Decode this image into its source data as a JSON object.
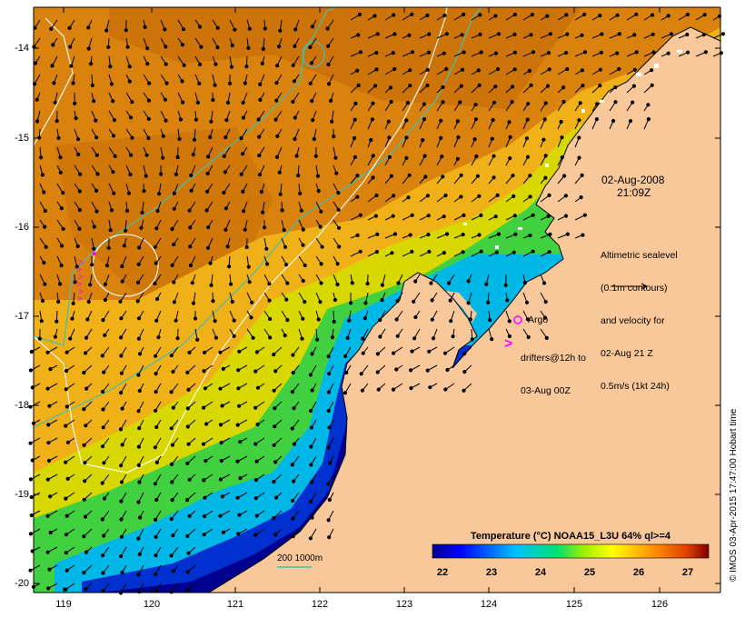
{
  "map": {
    "lat_labels": [
      "-14",
      "-15",
      "-16",
      "-17",
      "-18",
      "-19",
      "-20"
    ],
    "lon_labels": [
      "119",
      "120",
      "121",
      "122",
      "123",
      "124",
      "125",
      "126"
    ],
    "date": "02-Aug-2008",
    "time": "21:09Z",
    "altimetry_note": [
      "Altimetric sealevel",
      "(0.1m contours)",
      "and velocity for",
      "02-Aug 21 Z",
      "0.5m/s (1kt 24h)"
    ],
    "argo_label": "Argo",
    "drifters_label": [
      "drifters@12h to",
      "03-Aug 00Z"
    ],
    "depth_scale_label": "200  1000m",
    "colorbar_title": "Temperature (°C) NOAA15_L3U 64% ql>=4",
    "colorbar_ticks": [
      "22",
      "23",
      "24",
      "25",
      "26",
      "27"
    ],
    "credit": "© IMOS 03-Apr-2015 17:47:00 Hobart time",
    "colors": {
      "land": "#f9c89a",
      "drifter": "#ff00ff",
      "isobath": "#40c0b0",
      "contour": "#ffffff"
    }
  }
}
